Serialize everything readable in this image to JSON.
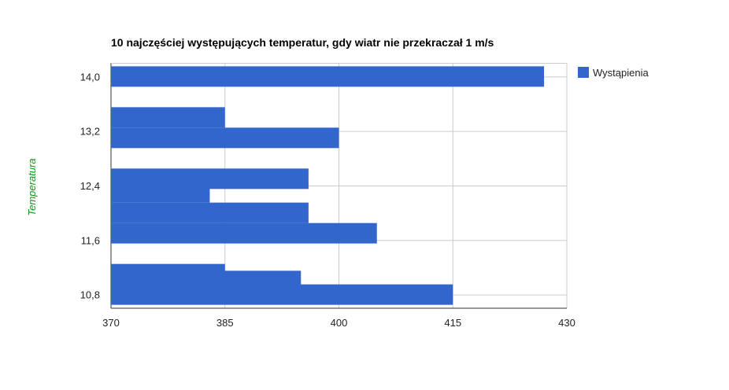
{
  "chart_data": {
    "type": "bar",
    "orientation": "horizontal",
    "title": "10 najczęściej występujących temperatur, gdy wiatr nie przekraczał 1 m/s",
    "ylabel": "Temperatura",
    "xlabel": "",
    "xlim": [
      370,
      430
    ],
    "x_ticks": [
      "370",
      "385",
      "400",
      "415",
      "430"
    ],
    "ylim": [
      10.6,
      14.2
    ],
    "y_ticks": [
      "14,0",
      "13,2",
      "12,4",
      "11,6",
      "10,8"
    ],
    "grid": true,
    "legend_position": "right",
    "series": [
      {
        "name": "Wystąpienia",
        "color": "#3366cc",
        "bars": [
          {
            "temperature": 14.0,
            "value": 427
          },
          {
            "temperature": 13.4,
            "value": 385
          },
          {
            "temperature": 13.1,
            "value": 400
          },
          {
            "temperature": 12.5,
            "value": 396
          },
          {
            "temperature": 12.3,
            "value": 383
          },
          {
            "temperature": 12.0,
            "value": 396
          },
          {
            "temperature": 11.7,
            "value": 405
          },
          {
            "temperature": 11.1,
            "value": 385
          },
          {
            "temperature": 11.0,
            "value": 395
          },
          {
            "temperature": 10.8,
            "value": 415
          }
        ]
      }
    ]
  }
}
